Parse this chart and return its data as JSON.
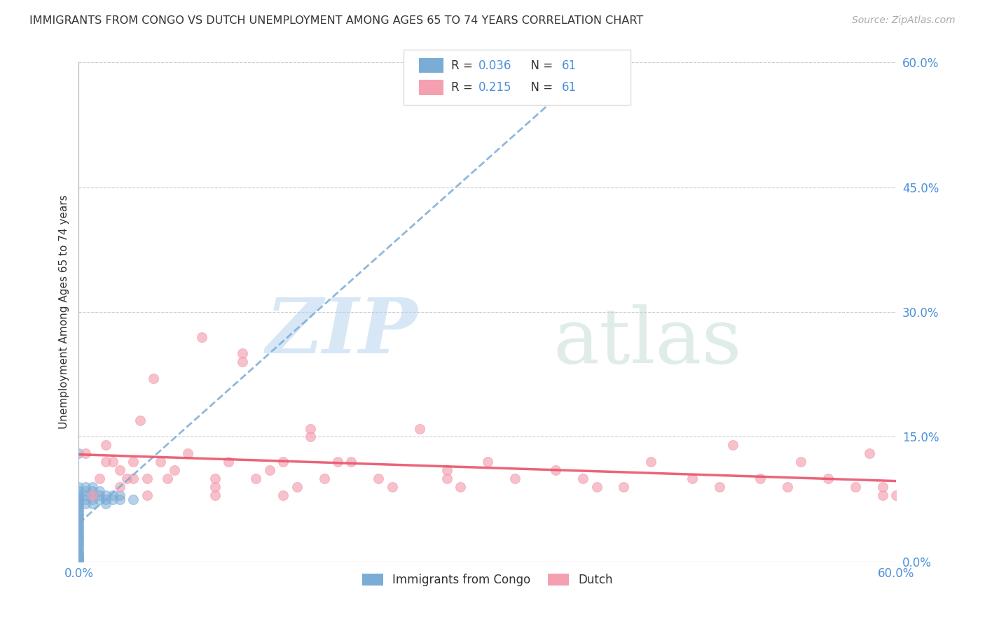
{
  "title": "IMMIGRANTS FROM CONGO VS DUTCH UNEMPLOYMENT AMONG AGES 65 TO 74 YEARS CORRELATION CHART",
  "source": "Source: ZipAtlas.com",
  "ylabel": "Unemployment Among Ages 65 to 74 years",
  "xlim": [
    0.0,
    0.6
  ],
  "ylim": [
    0.0,
    0.6
  ],
  "grid_color": "#cccccc",
  "legend_r_congo": "0.036",
  "legend_n_congo": "61",
  "legend_r_dutch": "0.215",
  "legend_n_dutch": "61",
  "legend_label_congo": "Immigrants from Congo",
  "legend_label_dutch": "Dutch",
  "color_congo": "#7aacd6",
  "color_dutch": "#f4a0b0",
  "trendline_congo_color": "#7aacd6",
  "trendline_dutch_color": "#e8546a",
  "congo_x": [
    0.0,
    0.0,
    0.0,
    0.0,
    0.0,
    0.0,
    0.0,
    0.0,
    0.0,
    0.0,
    0.0,
    0.0,
    0.0,
    0.0,
    0.0,
    0.0,
    0.0,
    0.0,
    0.0,
    0.0,
    0.0,
    0.0,
    0.0,
    0.0,
    0.0,
    0.0,
    0.0,
    0.0,
    0.0,
    0.0,
    0.0,
    0.0,
    0.0,
    0.0,
    0.0,
    0.0,
    0.0,
    0.0,
    0.0,
    0.0,
    0.005,
    0.005,
    0.005,
    0.005,
    0.005,
    0.01,
    0.01,
    0.01,
    0.01,
    0.01,
    0.015,
    0.015,
    0.015,
    0.02,
    0.02,
    0.02,
    0.025,
    0.025,
    0.03,
    0.03,
    0.04
  ],
  "congo_y": [
    0.13,
    0.09,
    0.085,
    0.08,
    0.078,
    0.075,
    0.072,
    0.07,
    0.068,
    0.065,
    0.062,
    0.06,
    0.057,
    0.055,
    0.052,
    0.05,
    0.048,
    0.045,
    0.042,
    0.04,
    0.038,
    0.035,
    0.032,
    0.03,
    0.028,
    0.025,
    0.023,
    0.02,
    0.018,
    0.015,
    0.012,
    0.01,
    0.008,
    0.006,
    0.005,
    0.004,
    0.003,
    0.002,
    0.001,
    0.0,
    0.09,
    0.085,
    0.08,
    0.075,
    0.07,
    0.09,
    0.085,
    0.08,
    0.075,
    0.07,
    0.085,
    0.08,
    0.075,
    0.08,
    0.075,
    0.07,
    0.08,
    0.075,
    0.08,
    0.075,
    0.075
  ],
  "dutch_x": [
    0.005,
    0.01,
    0.015,
    0.02,
    0.02,
    0.025,
    0.03,
    0.03,
    0.035,
    0.04,
    0.04,
    0.045,
    0.05,
    0.05,
    0.055,
    0.06,
    0.065,
    0.07,
    0.08,
    0.09,
    0.1,
    0.1,
    0.1,
    0.11,
    0.12,
    0.12,
    0.13,
    0.14,
    0.15,
    0.15,
    0.16,
    0.17,
    0.17,
    0.18,
    0.19,
    0.2,
    0.22,
    0.23,
    0.25,
    0.27,
    0.27,
    0.28,
    0.3,
    0.32,
    0.35,
    0.37,
    0.38,
    0.4,
    0.42,
    0.45,
    0.47,
    0.48,
    0.5,
    0.52,
    0.53,
    0.55,
    0.57,
    0.58,
    0.59,
    0.59,
    0.6
  ],
  "dutch_y": [
    0.13,
    0.08,
    0.1,
    0.14,
    0.12,
    0.12,
    0.11,
    0.09,
    0.1,
    0.12,
    0.1,
    0.17,
    0.1,
    0.08,
    0.22,
    0.12,
    0.1,
    0.11,
    0.13,
    0.27,
    0.1,
    0.09,
    0.08,
    0.12,
    0.25,
    0.24,
    0.1,
    0.11,
    0.12,
    0.08,
    0.09,
    0.16,
    0.15,
    0.1,
    0.12,
    0.12,
    0.1,
    0.09,
    0.16,
    0.11,
    0.1,
    0.09,
    0.12,
    0.1,
    0.11,
    0.1,
    0.09,
    0.09,
    0.12,
    0.1,
    0.09,
    0.14,
    0.1,
    0.09,
    0.12,
    0.1,
    0.09,
    0.13,
    0.09,
    0.08,
    0.08
  ],
  "background_color": "#ffffff"
}
